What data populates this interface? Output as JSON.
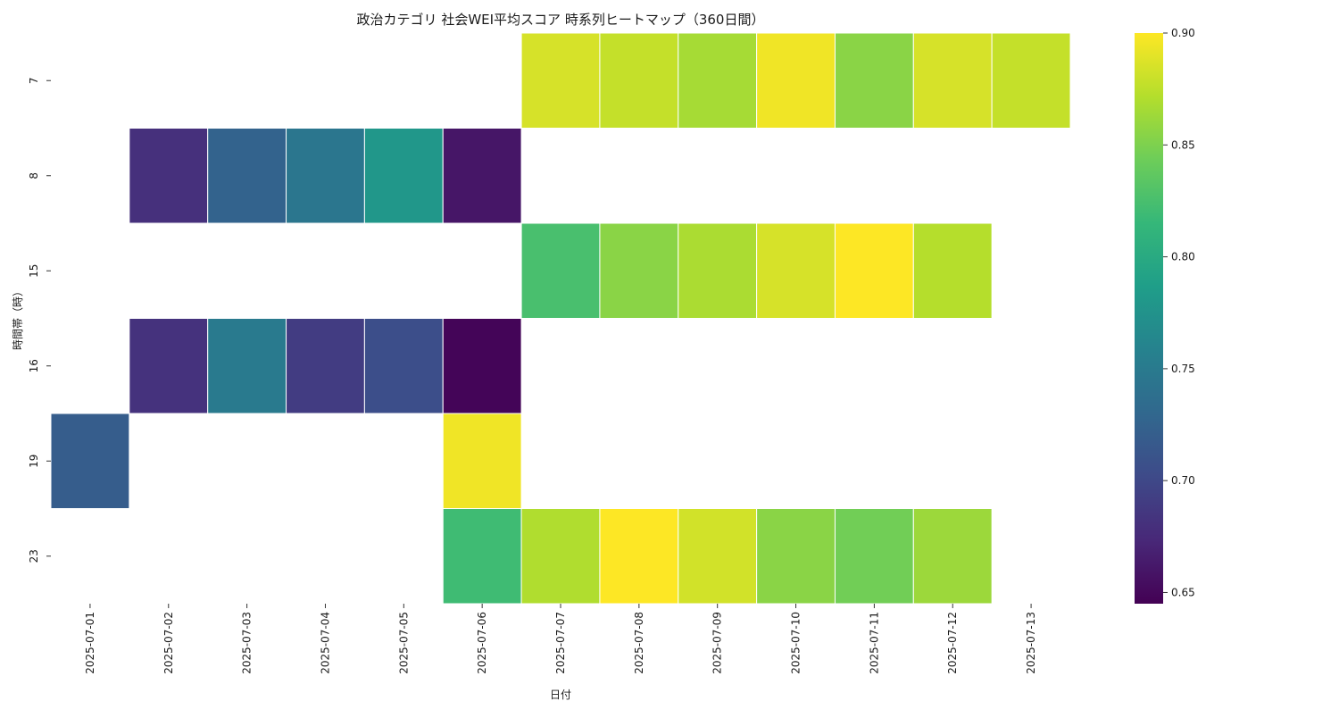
{
  "chart_data": {
    "type": "heatmap",
    "title": "政治カテゴリ 社会WEI平均スコア 時系列ヒートマップ（360日間）",
    "xlabel": "日付",
    "ylabel": "時間帯（時）",
    "x_categories": [
      "2025-07-01",
      "2025-07-02",
      "2025-07-03",
      "2025-07-04",
      "2025-07-05",
      "2025-07-06",
      "2025-07-07",
      "2025-07-08",
      "2025-07-09",
      "2025-07-10",
      "2025-07-11",
      "2025-07-12",
      "2025-07-13"
    ],
    "y_categories": [
      "7",
      "8",
      "15",
      "16",
      "19",
      "23"
    ],
    "values": [
      [
        null,
        null,
        null,
        null,
        null,
        null,
        0.885,
        0.878,
        0.866,
        0.895,
        0.855,
        0.885,
        0.878
      ],
      [
        null,
        0.68,
        0.725,
        0.745,
        0.78,
        0.66,
        null,
        null,
        null,
        null,
        null,
        null,
        null
      ],
      [
        null,
        null,
        null,
        null,
        null,
        null,
        0.825,
        0.855,
        0.868,
        0.885,
        0.9,
        0.872,
        null
      ],
      [
        null,
        0.682,
        0.75,
        0.69,
        0.705,
        0.648,
        null,
        null,
        null,
        null,
        null,
        null,
        null
      ],
      [
        0.72,
        null,
        null,
        null,
        null,
        0.895,
        null,
        null,
        null,
        null,
        null,
        null,
        null
      ],
      [
        null,
        null,
        null,
        null,
        null,
        0.82,
        0.87,
        0.9,
        0.883,
        0.855,
        0.845,
        0.862,
        null
      ]
    ],
    "colorbar": {
      "colormap": "viridis",
      "vmin": 0.645,
      "vmax": 0.9,
      "ticks": [
        "0.65",
        "0.70",
        "0.75",
        "0.80",
        "0.85",
        "0.90"
      ]
    },
    "grid": false,
    "cell_border_color": "#ffffff"
  }
}
